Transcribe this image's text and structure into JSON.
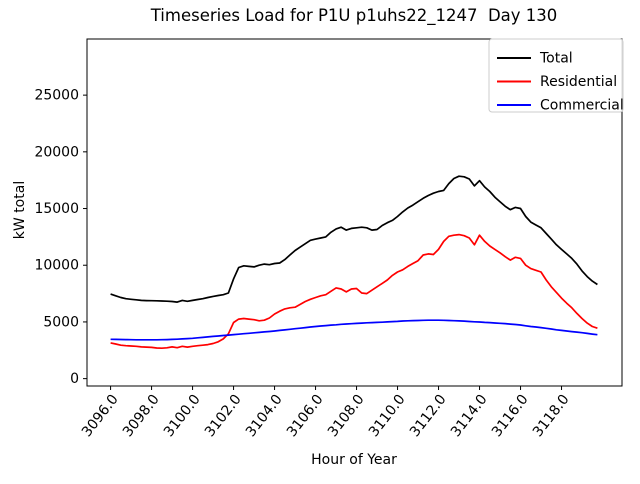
{
  "title": "Timeseries Load for P1U p1uhs22_1247  Day 130",
  "chart_data": {
    "type": "line",
    "title": "Timeseries Load for P1U p1uhs22_1247  Day 130",
    "xlabel": "Hour of Year",
    "ylabel": "kW total",
    "grid": false,
    "legend_position": "upper right",
    "xlim": [
      3094.85,
      3120.95
    ],
    "ylim": [
      -650,
      29950
    ],
    "x_ticks": [
      3096,
      3098,
      3100,
      3102,
      3104,
      3106,
      3108,
      3110,
      3112,
      3114,
      3116,
      3118
    ],
    "x_tick_labels": [
      "3096.0",
      "3098.0",
      "3100.0",
      "3102.0",
      "3104.0",
      "3106.0",
      "3108.0",
      "3110.0",
      "3112.0",
      "3114.0",
      "3116.0",
      "3118.0"
    ],
    "y_ticks": [
      0,
      5000,
      10000,
      15000,
      20000,
      25000
    ],
    "y_tick_labels": [
      "0",
      "5000",
      "10000",
      "15000",
      "20000",
      "25000"
    ],
    "x_start": 3096.0,
    "x_step": 0.25,
    "series": [
      {
        "name": "Total",
        "color": "#000000",
        "values": [
          7450,
          7300,
          7150,
          7050,
          7000,
          6950,
          6900,
          6880,
          6870,
          6860,
          6850,
          6830,
          6800,
          6750,
          6900,
          6820,
          6900,
          6980,
          7050,
          7150,
          7250,
          7330,
          7400,
          7550,
          8800,
          9800,
          9950,
          9900,
          9850,
          10000,
          10100,
          10050,
          10150,
          10200,
          10500,
          10900,
          11300,
          11600,
          11900,
          12200,
          12300,
          12400,
          12500,
          12900,
          13200,
          13350,
          13100,
          13250,
          13300,
          13350,
          13300,
          13100,
          13150,
          13500,
          13750,
          13950,
          14300,
          14700,
          15050,
          15300,
          15600,
          15900,
          16150,
          16350,
          16500,
          16600,
          17200,
          17650,
          17850,
          17800,
          17600,
          17000,
          17450,
          16900,
          16500,
          16000,
          15600,
          15200,
          14900,
          15100,
          15000,
          14300,
          13800,
          13550,
          13300,
          12800,
          12300,
          11800,
          11400,
          11000,
          10600,
          10100,
          9500,
          9000,
          8600,
          8300
        ]
      },
      {
        "name": "Residential",
        "color": "#ff0000",
        "values": [
          3150,
          3050,
          2950,
          2900,
          2880,
          2850,
          2800,
          2780,
          2750,
          2700,
          2680,
          2720,
          2800,
          2730,
          2850,
          2780,
          2850,
          2900,
          2950,
          3000,
          3100,
          3250,
          3500,
          3950,
          4950,
          5250,
          5300,
          5250,
          5200,
          5100,
          5150,
          5350,
          5700,
          5950,
          6150,
          6250,
          6300,
          6550,
          6800,
          7000,
          7150,
          7300,
          7400,
          7700,
          8000,
          7900,
          7650,
          7900,
          7950,
          7550,
          7500,
          7800,
          8100,
          8400,
          8700,
          9100,
          9400,
          9600,
          9900,
          10150,
          10400,
          10900,
          11000,
          10950,
          11400,
          12100,
          12550,
          12650,
          12700,
          12600,
          12400,
          11800,
          12650,
          12100,
          11700,
          11400,
          11100,
          10750,
          10450,
          10700,
          10600,
          10000,
          9700,
          9550,
          9400,
          8700,
          8100,
          7600,
          7100,
          6650,
          6250,
          5750,
          5300,
          4900,
          4600,
          4450
        ]
      },
      {
        "name": "Commercial",
        "color": "#0000ff",
        "values": [
          3470,
          3460,
          3450,
          3440,
          3430,
          3425,
          3420,
          3420,
          3420,
          3425,
          3430,
          3445,
          3460,
          3480,
          3500,
          3530,
          3560,
          3600,
          3640,
          3680,
          3720,
          3760,
          3800,
          3840,
          3880,
          3920,
          3960,
          4000,
          4040,
          4080,
          4120,
          4160,
          4200,
          4250,
          4300,
          4350,
          4400,
          4450,
          4500,
          4550,
          4600,
          4640,
          4680,
          4720,
          4750,
          4790,
          4820,
          4845,
          4870,
          4895,
          4920,
          4940,
          4960,
          4980,
          5000,
          5030,
          5050,
          5080,
          5100,
          5120,
          5130,
          5140,
          5150,
          5150,
          5150,
          5140,
          5130,
          5110,
          5090,
          5070,
          5040,
          5010,
          4990,
          4960,
          4940,
          4910,
          4880,
          4850,
          4810,
          4770,
          4730,
          4660,
          4600,
          4550,
          4500,
          4440,
          4380,
          4310,
          4250,
          4200,
          4150,
          4100,
          4050,
          3990,
          3930,
          3870
        ]
      }
    ]
  },
  "legend": {
    "entries": [
      {
        "label": "Total",
        "color": "#000000"
      },
      {
        "label": "Residential",
        "color": "#ff0000"
      },
      {
        "label": "Commercial",
        "color": "#0000ff"
      }
    ]
  }
}
